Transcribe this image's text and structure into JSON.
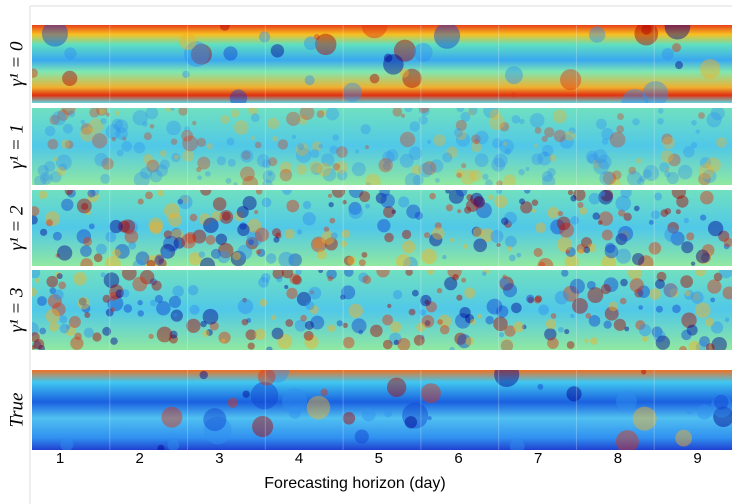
{
  "figure": {
    "row_labels": [
      "γ¹ = 0",
      "γ¹ = 1",
      "γ¹ = 2",
      "γ¹ = 3",
      "True"
    ],
    "column_labels": [
      "1",
      "2",
      "3",
      "4",
      "5",
      "6",
      "7",
      "8",
      "9"
    ],
    "x_title": "Forecasting horizon (day)"
  }
}
